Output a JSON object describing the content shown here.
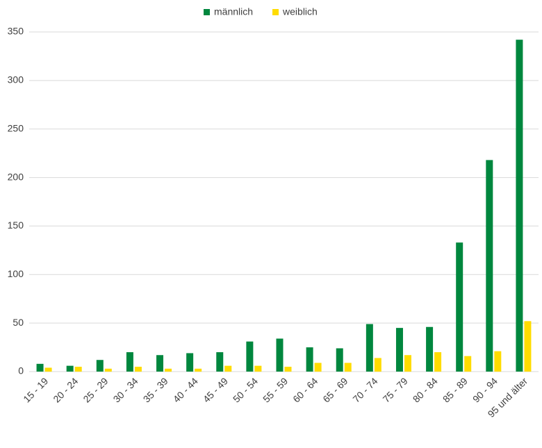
{
  "chart_data": {
    "type": "bar",
    "categories": [
      "15 - 19",
      "20 - 24",
      "25 - 29",
      "30 - 34",
      "35 - 39",
      "40 - 44",
      "45 - 49",
      "50 - 54",
      "55 - 59",
      "60 - 64",
      "65 - 69",
      "70 - 74",
      "75 - 79",
      "80 - 84",
      "85 - 89",
      "90 - 94",
      "95 und älter"
    ],
    "series": [
      {
        "name": "männlich",
        "color": "#00873e",
        "values": [
          8,
          6,
          12,
          20,
          17,
          19,
          20,
          31,
          34,
          25,
          24,
          49,
          45,
          46,
          133,
          218,
          342
        ]
      },
      {
        "name": "weiblich",
        "color": "#ffdc00",
        "values": [
          4,
          5,
          3,
          5,
          3,
          3,
          6,
          6,
          5,
          9,
          9,
          14,
          17,
          20,
          16,
          21,
          52
        ]
      }
    ],
    "ylim": [
      0,
      350
    ],
    "yticks": [
      0,
      50,
      100,
      150,
      200,
      250,
      300,
      350
    ],
    "grid": true,
    "legend": "top"
  }
}
